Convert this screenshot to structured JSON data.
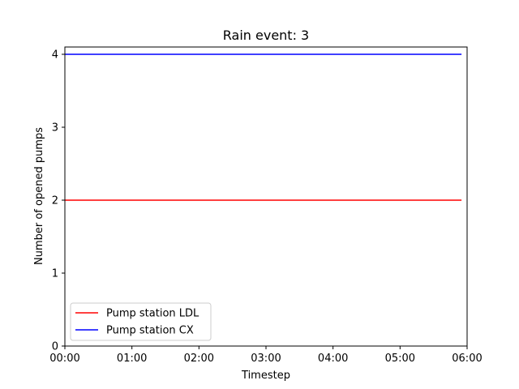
{
  "chart_data": {
    "type": "line",
    "title": "Rain event: 3",
    "xlabel": "Timestep",
    "ylabel": "Number of opened pumps",
    "x_tick_labels": [
      "00:00",
      "01:00",
      "02:00",
      "03:00",
      "04:00",
      "05:00",
      "06:00"
    ],
    "y_ticks": [
      0,
      1,
      2,
      3,
      4
    ],
    "xlim": [
      "00:00",
      "06:00"
    ],
    "ylim": [
      0,
      4.1
    ],
    "grid": false,
    "legend_position": "lower-left",
    "series": [
      {
        "name": "Pump station LDL",
        "color": "#ff0000",
        "x": [
          "00:00",
          "05:55"
        ],
        "y": [
          2,
          2
        ]
      },
      {
        "name": "Pump station CX",
        "color": "#0000ff",
        "x": [
          "00:00",
          "05:55"
        ],
        "y": [
          4,
          4
        ]
      }
    ]
  }
}
